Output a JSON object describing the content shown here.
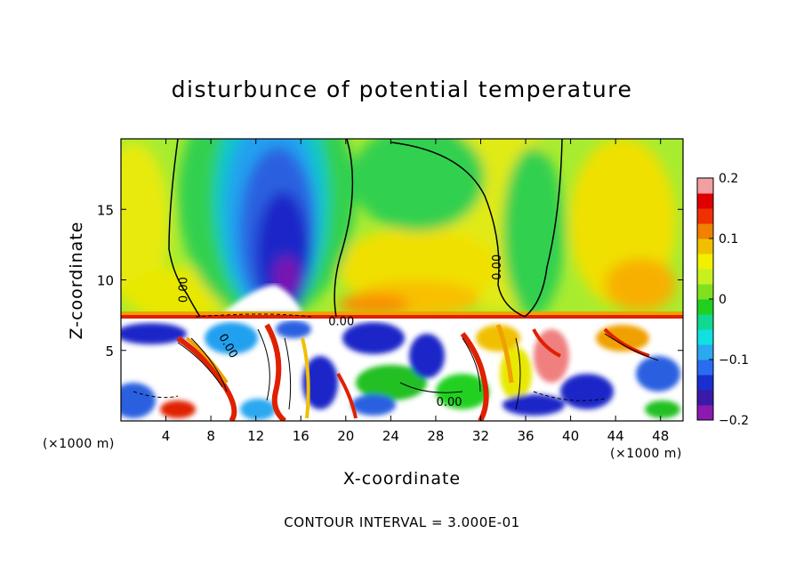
{
  "chart_data": {
    "type": "heatmap",
    "title": "disturbunce of potential temperature",
    "xlabel": "X-coordinate",
    "ylabel": "Z-coordinate",
    "x_unit": "(×1000 m)",
    "x_unit_right": "(×1000 m)",
    "xlim": [
      0,
      50
    ],
    "ylim": [
      0,
      20
    ],
    "x_ticks": [
      4,
      8,
      12,
      16,
      20,
      24,
      28,
      32,
      36,
      40,
      44,
      48
    ],
    "y_ticks": [
      5,
      10,
      15
    ],
    "contour_labels": [
      "0.00",
      "0.00",
      "0.00",
      "0.00",
      "0.00"
    ],
    "note": "CONTOUR INTERVAL = 3.000E-01",
    "colorbar": {
      "range": [
        -0.2,
        0.2
      ],
      "tick_labels": [
        "0.2",
        "0.1",
        "0",
        "−0.1",
        "−0.2"
      ],
      "tick_values": [
        0.2,
        0.1,
        0,
        -0.1,
        -0.2
      ],
      "colors": [
        "#8a1ab0",
        "#3a1aa8",
        "#1a2fd0",
        "#2a6cf0",
        "#2aa8f0",
        "#10e0e0",
        "#10d890",
        "#20d020",
        "#80e020",
        "#c8f020",
        "#f0f000",
        "#f0c000",
        "#f08000",
        "#f03000",
        "#e00000",
        "#f0a0a0"
      ]
    }
  }
}
